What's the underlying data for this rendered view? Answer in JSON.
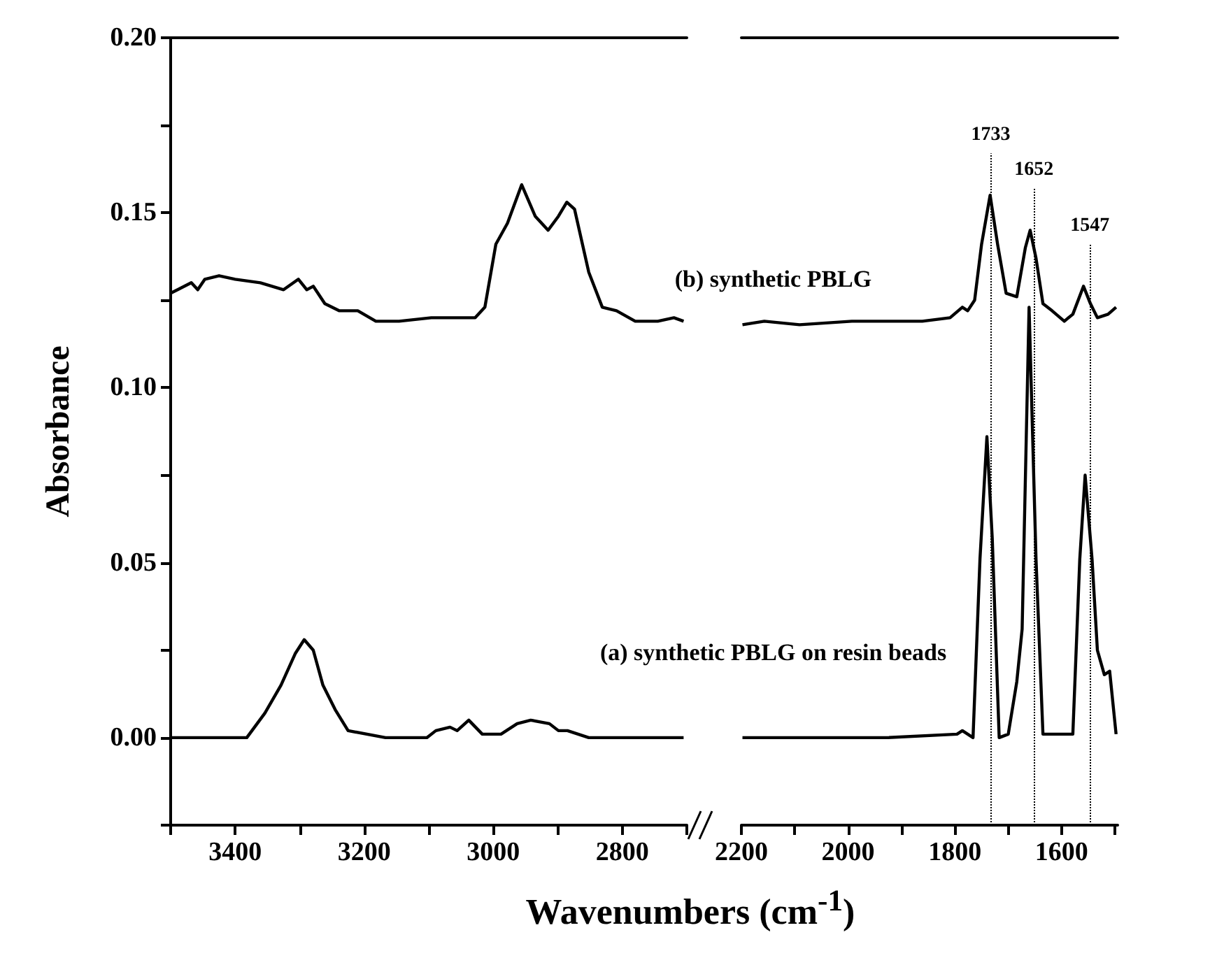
{
  "chart_data": [
    {
      "type": "line",
      "ylabel": "Absorbance",
      "xlabel": "Wavenumbers (cm$^{-1}$)",
      "xlim": [
        3500,
        2700
      ],
      "xticks": [
        {
          "value": 3500,
          "label": null
        },
        3400,
        {
          "value": 3300,
          "label": null
        },
        3200,
        {
          "value": 3100,
          "label": null
        },
        3000,
        {
          "value": 2900,
          "label": null
        },
        2800,
        {
          "value": 2700,
          "label": null
        }
      ],
      "ylim": [
        -0.025,
        0.2
      ],
      "yticks": [
        {
          "value": -0.025,
          "label": null
        },
        {
          "value": 0,
          "label": "0.00"
        },
        {
          "value": 0.025,
          "label": null
        },
        {
          "value": 0.05,
          "label": "0.05"
        },
        {
          "value": 0.075,
          "label": null
        },
        {
          "value": 0.1,
          "label": "0.10"
        },
        {
          "value": 0.125,
          "label": null
        },
        {
          "value": 0.15,
          "label": "0.15"
        },
        {
          "value": 0.175,
          "label": null
        },
        {
          "value": 0.2,
          "label": "0.20"
        }
      ],
      "series": [
        {
          "color": "#000000",
          "x": [
            3500,
            3468,
            3458,
            3447,
            3425,
            3400,
            3361,
            3325,
            3302,
            3289,
            3279,
            3261,
            3239,
            3210,
            3182,
            3146,
            3096,
            3060,
            3028,
            3013,
            2996,
            2978,
            2956,
            2935,
            2915,
            2899,
            2886,
            2874,
            2852,
            2831,
            2809,
            2780,
            2745,
            2720,
            2705
          ],
          "values": [
            0.127,
            0.13,
            0.128,
            0.131,
            0.132,
            0.131,
            0.13,
            0.128,
            0.131,
            0.128,
            0.129,
            0.124,
            0.122,
            0.122,
            0.119,
            0.119,
            0.12,
            0.12,
            0.12,
            0.123,
            0.141,
            0.147,
            0.158,
            0.149,
            0.145,
            0.149,
            0.153,
            0.151,
            0.133,
            0.123,
            0.122,
            0.119,
            0.119,
            0.12,
            0.119
          ]
        },
        {
          "color": "#000000",
          "x": [
            3500,
            3382,
            3354,
            3329,
            3307,
            3293,
            3279,
            3264,
            3245,
            3225,
            3167,
            3103,
            3089,
            3067,
            3056,
            3038,
            3017,
            2988,
            2963,
            2942,
            2913,
            2899,
            2885,
            2852,
            2705
          ],
          "values": [
            0.0,
            0.0,
            0.007,
            0.015,
            0.024,
            0.028,
            0.025,
            0.015,
            0.008,
            0.002,
            0.0,
            0.0,
            0.002,
            0.003,
            0.002,
            0.005,
            0.001,
            0.001,
            0.004,
            0.005,
            0.004,
            0.002,
            0.002,
            0.0,
            0.0
          ]
        }
      ]
    },
    {
      "type": "line",
      "tick_labels": "x",
      "xlim": [
        2200,
        1495
      ],
      "xticks": [
        2200,
        {
          "value": 2100,
          "label": null
        },
        2000,
        {
          "value": 1900,
          "label": null
        },
        1800,
        {
          "value": 1700,
          "label": null
        },
        1600,
        {
          "value": 1500,
          "label": null
        }
      ],
      "ylim": [
        -0.025,
        0.2
      ],
      "series": [
        {
          "name": "(b) synthetic PBLG",
          "color": "#000000",
          "x": [
            2198,
            2157,
            2091,
            1993,
            1927,
            1861,
            1809,
            1786,
            1776,
            1763,
            1750,
            1734,
            1720,
            1704,
            1684,
            1668,
            1659,
            1648,
            1635,
            1618,
            1595,
            1579,
            1559,
            1546,
            1533,
            1513,
            1498
          ],
          "values": [
            0.118,
            0.119,
            0.118,
            0.119,
            0.119,
            0.119,
            0.12,
            0.123,
            0.122,
            0.125,
            0.141,
            0.155,
            0.141,
            0.127,
            0.126,
            0.14,
            0.145,
            0.137,
            0.124,
            0.122,
            0.119,
            0.121,
            0.129,
            0.124,
            0.12,
            0.121,
            0.123
          ]
        },
        {
          "name": "(a) synthetic PBLG on resin beads",
          "color": "#000000",
          "x": [
            2198,
            2058,
            1927,
            1796,
            1786,
            1766,
            1753,
            1740,
            1730,
            1717,
            1700,
            1684,
            1674,
            1661,
            1648,
            1635,
            1612,
            1579,
            1566,
            1556,
            1543,
            1533,
            1520,
            1510,
            1498
          ],
          "values": [
            0.0,
            0.0,
            0.0,
            0.001,
            0.002,
            0.0,
            0.051,
            0.086,
            0.057,
            0.0,
            0.001,
            0.016,
            0.031,
            0.123,
            0.051,
            0.001,
            0.001,
            0.001,
            0.051,
            0.075,
            0.051,
            0.025,
            0.018,
            0.019,
            0.001
          ]
        }
      ],
      "ref_lines": [
        {
          "axis": "x",
          "value": 1733,
          "label": "1733",
          "line_style": "dotted"
        },
        {
          "axis": "x",
          "value": 1652,
          "label": "1652",
          "line_style": "dotted"
        },
        {
          "axis": "x",
          "value": 1547,
          "label": "1547",
          "line_style": "dotted"
        }
      ]
    }
  ]
}
